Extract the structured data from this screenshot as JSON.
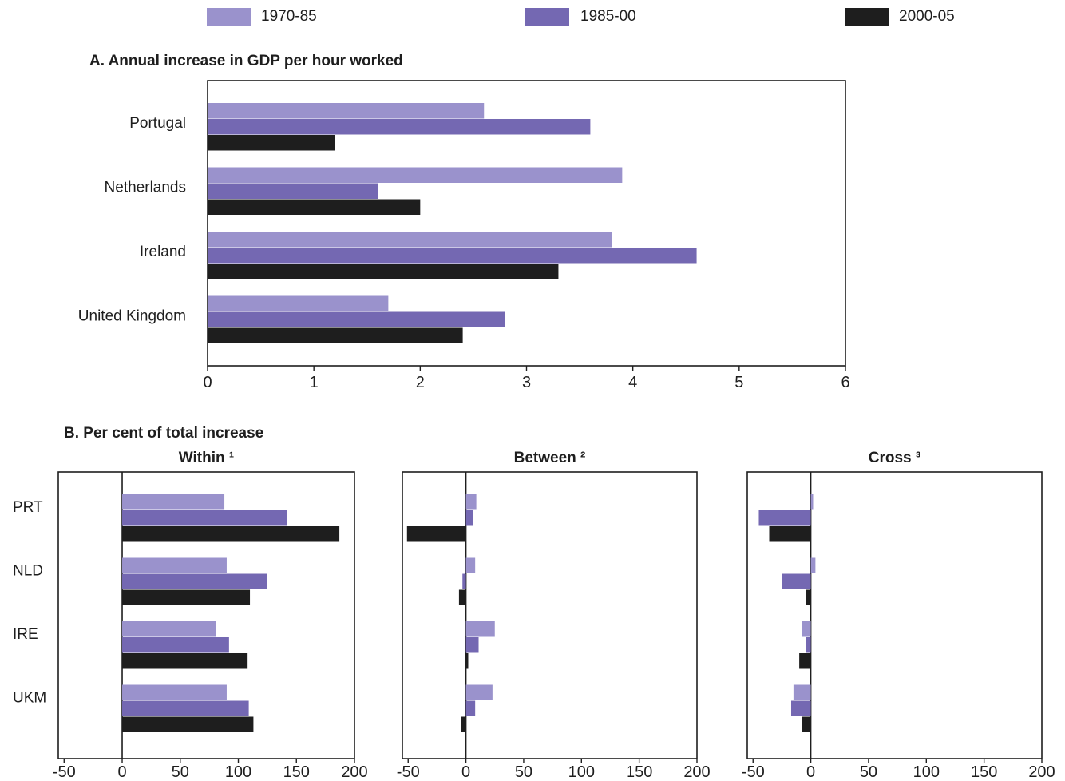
{
  "colors": {
    "s1970": "#9a92cc",
    "s1985": "#7468b2",
    "s2000": "#1e1e1e",
    "frame": "#1e1e1e"
  },
  "legend": [
    "1970-85",
    "1985-00",
    "2000-05"
  ],
  "chart_data": [
    {
      "type": "bar",
      "orientation": "horizontal",
      "title": "A. Annual increase in GDP per hour worked",
      "categories": [
        "Portugal",
        "Netherlands",
        "Ireland",
        "United Kingdom"
      ],
      "series": [
        {
          "name": "1970-85",
          "values": [
            2.6,
            3.9,
            3.8,
            1.7
          ]
        },
        {
          "name": "1985-00",
          "values": [
            3.6,
            1.6,
            4.6,
            2.8
          ]
        },
        {
          "name": "2000-05",
          "values": [
            1.2,
            2.0,
            3.3,
            2.4
          ]
        }
      ],
      "xlim": [
        0,
        6
      ],
      "xticks": [
        "0",
        "1",
        "2",
        "3",
        "4",
        "5",
        "6"
      ]
    },
    {
      "type": "bar",
      "orientation": "horizontal",
      "group_title": "B. Per cent of total increase",
      "title": "Within ¹",
      "categories": [
        "PRT",
        "NLD",
        "IRE",
        "UKM"
      ],
      "series": [
        {
          "name": "1970-85",
          "values": [
            88,
            90,
            81,
            90
          ]
        },
        {
          "name": "1985-00",
          "values": [
            142,
            125,
            92,
            109
          ]
        },
        {
          "name": "2000-05",
          "values": [
            187,
            110,
            108,
            113
          ]
        }
      ],
      "xlim": [
        -55,
        200
      ],
      "xticks": [
        "-50",
        "0",
        "50",
        "100",
        "150",
        "200"
      ]
    },
    {
      "type": "bar",
      "orientation": "horizontal",
      "title": "Between ²",
      "categories": [
        "PRT",
        "NLD",
        "IRE",
        "UKM"
      ],
      "series": [
        {
          "name": "1970-85",
          "values": [
            9,
            8,
            25,
            23
          ]
        },
        {
          "name": "1985-00",
          "values": [
            6,
            -3,
            11,
            8
          ]
        },
        {
          "name": "2000-05",
          "values": [
            -51,
            -6,
            2,
            -4
          ]
        }
      ],
      "xlim": [
        -55,
        200
      ],
      "xticks": [
        "-50",
        "0",
        "50",
        "100",
        "150",
        "200"
      ]
    },
    {
      "type": "bar",
      "orientation": "horizontal",
      "title": "Cross ³",
      "categories": [
        "PRT",
        "NLD",
        "IRE",
        "UKM"
      ],
      "series": [
        {
          "name": "1970-85",
          "values": [
            2,
            4,
            -8,
            -15
          ]
        },
        {
          "name": "1985-00",
          "values": [
            -45,
            -25,
            -4,
            -17
          ]
        },
        {
          "name": "2000-05",
          "values": [
            -36,
            -4,
            -10,
            -8
          ]
        }
      ],
      "xlim": [
        -55,
        200
      ],
      "xticks": [
        "-50",
        "0",
        "50",
        "100",
        "150",
        "200"
      ]
    }
  ]
}
